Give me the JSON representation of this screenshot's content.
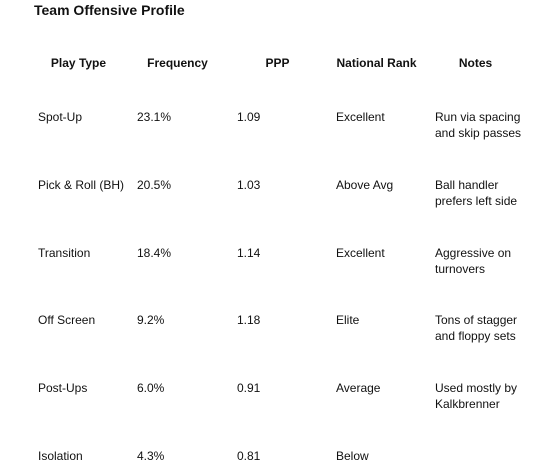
{
  "title": "Team Offensive Profile",
  "table": {
    "headers": [
      "Play Type",
      "Frequency",
      "PPP",
      "National Rank",
      "Notes"
    ],
    "rows": [
      [
        "Spot-Up",
        "23.1%",
        "1.09",
        "Excellent",
        "Run via spacing and skip passes"
      ],
      [
        "Pick & Roll (BH)",
        "20.5%",
        "1.03",
        "Above Avg",
        "Ball handler prefers left side"
      ],
      [
        "Transition",
        "18.4%",
        "1.14",
        "Excellent",
        "Aggressive on turnovers"
      ],
      [
        "Off Screen",
        "9.2%",
        "1.18",
        "Elite",
        "Tons of stagger and floppy sets"
      ],
      [
        "Post-Ups",
        "6.0%",
        "0.91",
        "Average",
        "Used mostly by Kalkbrenner"
      ],
      [
        "Isolation",
        "4.3%",
        "0.81",
        "Below",
        ""
      ]
    ]
  }
}
